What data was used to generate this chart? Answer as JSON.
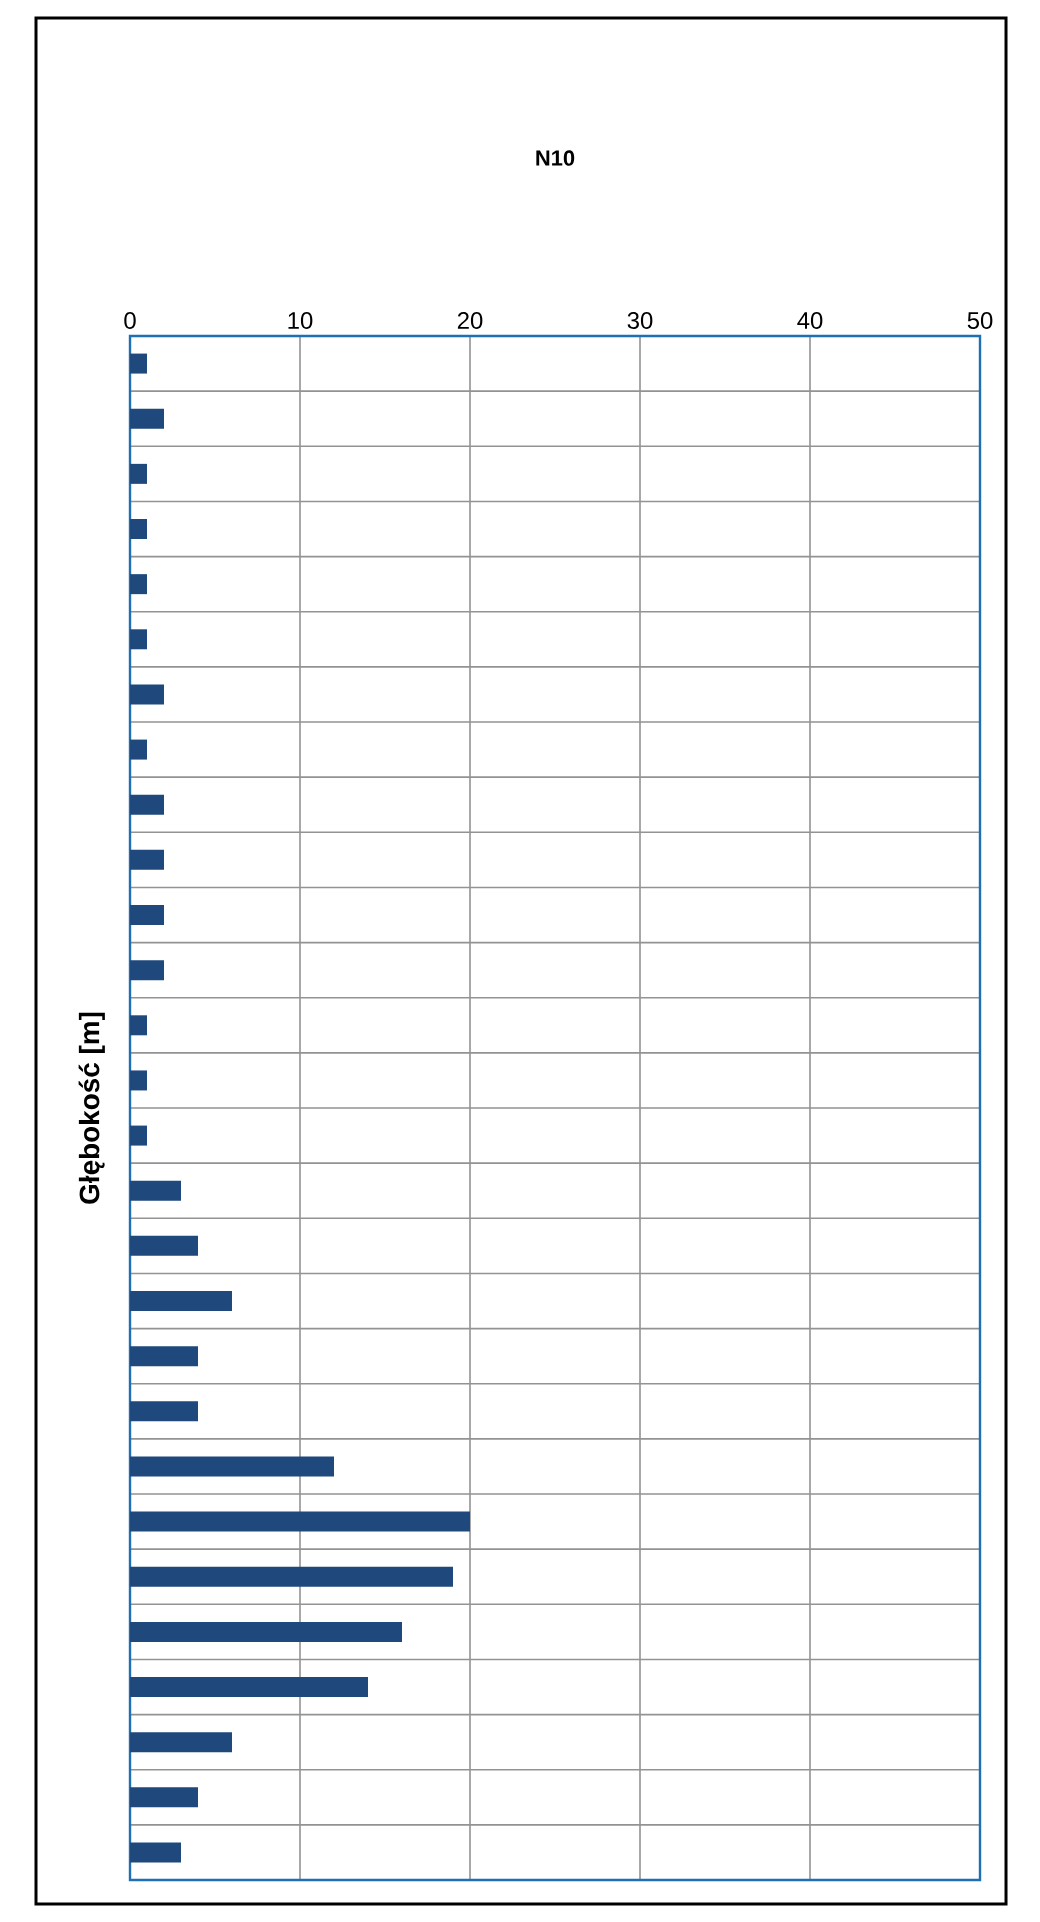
{
  "chart_data": {
    "type": "bar",
    "orientation": "horizontal",
    "title": "N10",
    "ylabel": "Głębokość [m]",
    "categories": [
      null,
      null,
      null,
      null,
      null,
      null,
      null,
      null,
      null,
      null,
      null,
      null,
      null,
      null,
      null,
      null,
      null,
      null,
      null,
      null,
      null,
      null,
      null,
      null,
      null,
      null,
      null,
      null
    ],
    "values": [
      1,
      2,
      1,
      1,
      1,
      1,
      2,
      1,
      2,
      2,
      2,
      2,
      1,
      1,
      1,
      3,
      4,
      6,
      4,
      4,
      12,
      20,
      19,
      16,
      14,
      6,
      4,
      3
    ],
    "color": "#1f497d",
    "xlim": [
      0,
      50
    ],
    "xticks": [
      0,
      10,
      20,
      30,
      40,
      50
    ],
    "grid": true
  }
}
